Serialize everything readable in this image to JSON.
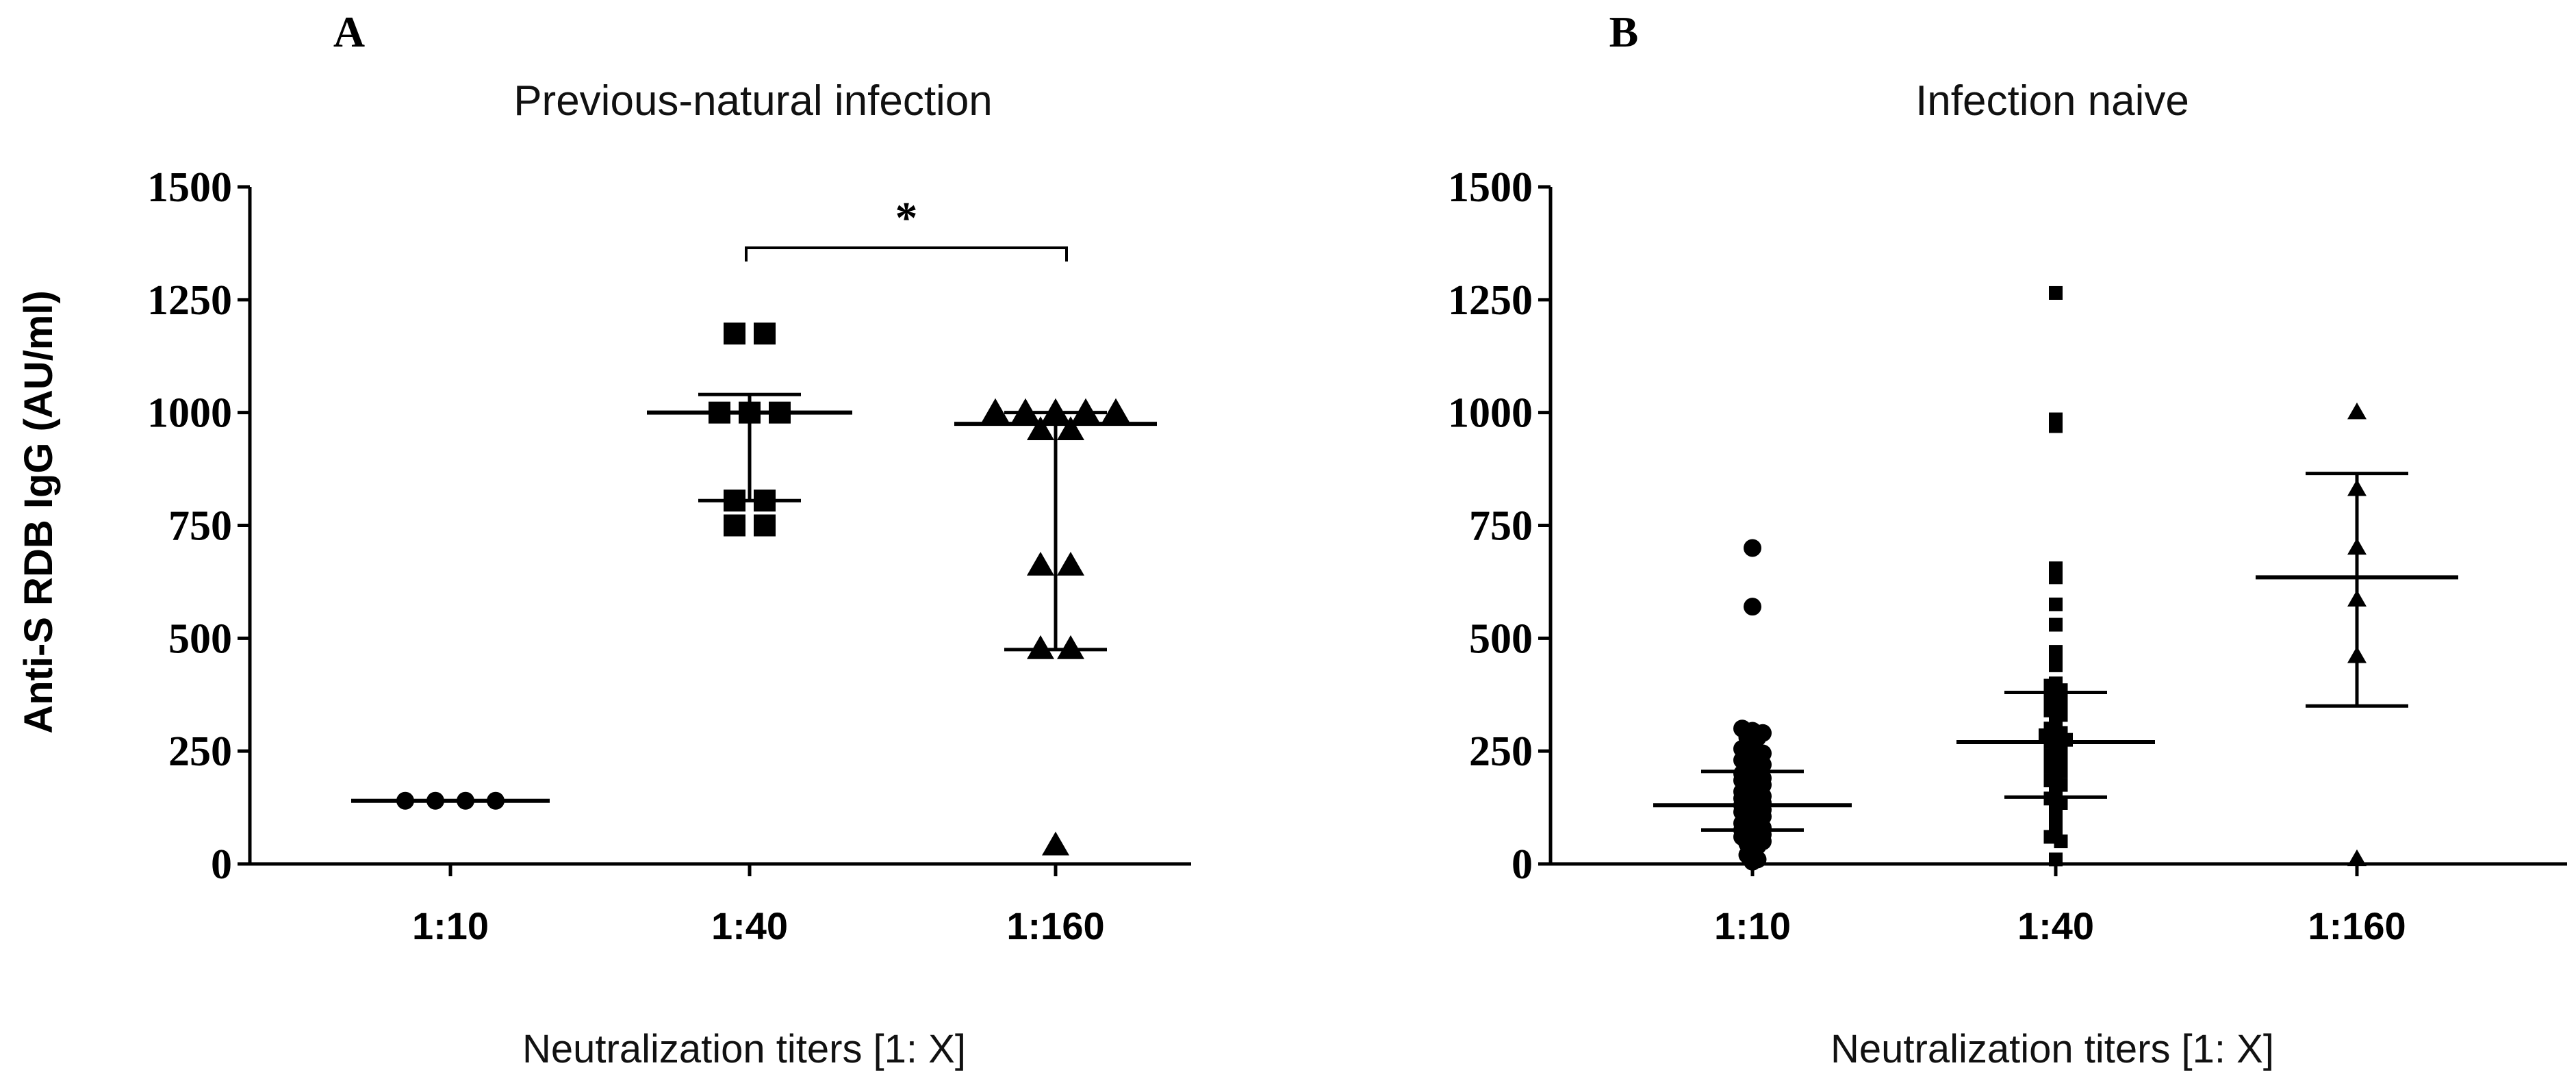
{
  "chart_data": [
    {
      "type": "scatter",
      "panel_label": "A",
      "title": "Previous-natural infection",
      "xlabel": "Neutralization titers [1: X]",
      "ylabel": "Anti-S RDB IgG (AU/ml)",
      "ylim": [
        0,
        1500
      ],
      "yticks": [
        "0",
        "250",
        "500",
        "750",
        "1000",
        "1250",
        "1500"
      ],
      "categories": [
        "1:10",
        "1:40",
        "1:160"
      ],
      "significance": {
        "from": "1:40",
        "to": "1:160",
        "label": "*"
      },
      "groups": [
        {
          "category": "1:10",
          "marker": "circle",
          "median": 140,
          "q1": 140,
          "q3": 140,
          "points": [
            140,
            140,
            140,
            140
          ]
        },
        {
          "category": "1:40",
          "marker": "square",
          "median": 1000,
          "q1": 805,
          "q3": 1040,
          "points": [
            1175,
            1175,
            1000,
            1000,
            1000,
            805,
            805,
            750,
            750
          ]
        },
        {
          "category": "1:160",
          "marker": "triangle",
          "median": 975,
          "q1": 475,
          "q3": 1000,
          "points": [
            1000,
            1000,
            1000,
            1000,
            1000,
            960,
            960,
            660,
            660,
            475,
            475,
            40
          ]
        }
      ]
    },
    {
      "type": "scatter",
      "panel_label": "B",
      "title": "Infection naive",
      "xlabel": "Neutralization titers [1: X]",
      "ylabel": "",
      "ylim": [
        0,
        1500
      ],
      "yticks": [
        "0",
        "250",
        "500",
        "750",
        "1000",
        "1250",
        "1500"
      ],
      "categories": [
        "1:10",
        "1:40",
        "1:160"
      ],
      "groups": [
        {
          "category": "1:10",
          "marker": "circle",
          "median": 130,
          "q1": 75,
          "q3": 205,
          "points": [
            700,
            570,
            300,
            295,
            290,
            280,
            280,
            270,
            255,
            250,
            245,
            240,
            230,
            225,
            220,
            210,
            205,
            200,
            195,
            190,
            185,
            180,
            175,
            170,
            165,
            160,
            155,
            150,
            145,
            140,
            135,
            130,
            125,
            120,
            115,
            110,
            105,
            100,
            95,
            90,
            85,
            80,
            75,
            70,
            65,
            60,
            55,
            50,
            45,
            40,
            30,
            20,
            10,
            5
          ]
        },
        {
          "category": "1:40",
          "marker": "square",
          "median": 270,
          "q1": 148,
          "q3": 380,
          "points": [
            1265,
            985,
            970,
            655,
            635,
            575,
            530,
            470,
            460,
            440,
            400,
            395,
            385,
            380,
            375,
            365,
            355,
            350,
            340,
            330,
            320,
            310,
            300,
            290,
            285,
            280,
            275,
            270,
            260,
            250,
            240,
            235,
            225,
            215,
            205,
            195,
            185,
            175,
            165,
            155,
            145,
            135,
            125,
            115,
            100,
            90,
            75,
            60,
            50,
            10
          ]
        },
        {
          "category": "1:160",
          "marker": "triangle",
          "median": 635,
          "q1": 350,
          "q3": 865,
          "points": [
            1000,
            830,
            700,
            585,
            460,
            10
          ]
        }
      ]
    }
  ]
}
